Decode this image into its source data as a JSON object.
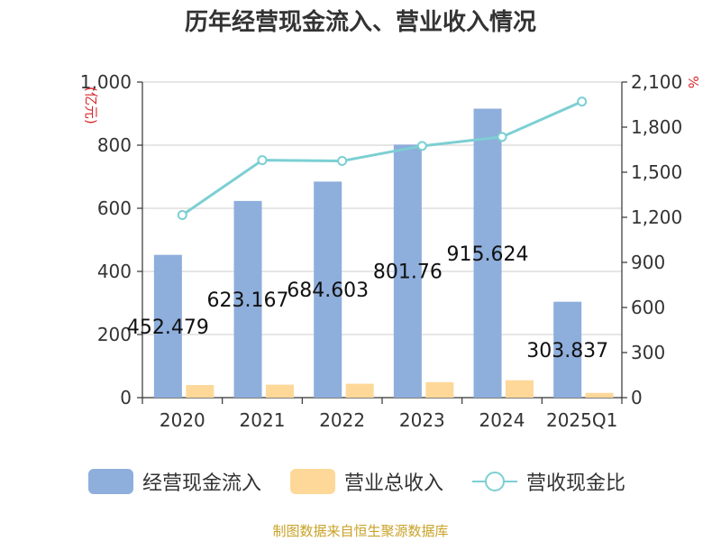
{
  "title": "历年经营现金流入、营业收入情况",
  "source": "制图数据来自恒生聚源数据库",
  "colors": {
    "bar_main": "#8eaedc",
    "bar_second": "#fdd898",
    "line": "#7ccfd3",
    "grid": "#dddddd",
    "axis": "#333333",
    "unit": "#d9262a"
  },
  "chart_data": {
    "type": "bar",
    "categories": [
      "2020",
      "2021",
      "2022",
      "2023",
      "2024",
      "2025Q1"
    ],
    "y_left": {
      "unit_label": "(亿元)",
      "ylim": [
        0,
        1000
      ],
      "ticks": [
        "0",
        "200",
        "400",
        "600",
        "800",
        "1,000"
      ]
    },
    "y_right": {
      "unit_label": "%",
      "ylim": [
        0,
        2100
      ],
      "ticks": [
        "0",
        "300",
        "600",
        "900",
        "1,200",
        "1,500",
        "1,800",
        "2,100"
      ]
    },
    "series": [
      {
        "name": "经营现金流入",
        "type": "bar",
        "axis": "left",
        "values": [
          452.479,
          623.167,
          684.603,
          801.76,
          915.624,
          303.837
        ],
        "labels": [
          "452.479",
          "623.167",
          "684.603",
          "801.76",
          "915.624",
          "303.837"
        ]
      },
      {
        "name": "营业总收入",
        "type": "bar",
        "axis": "left",
        "values": [
          40,
          41,
          44,
          49,
          55,
          15
        ]
      },
      {
        "name": "营收现金比",
        "type": "line",
        "axis": "right",
        "values": [
          1215,
          1580,
          1575,
          1675,
          1735,
          1970
        ]
      }
    ],
    "grid": true,
    "legend": "bottom"
  }
}
